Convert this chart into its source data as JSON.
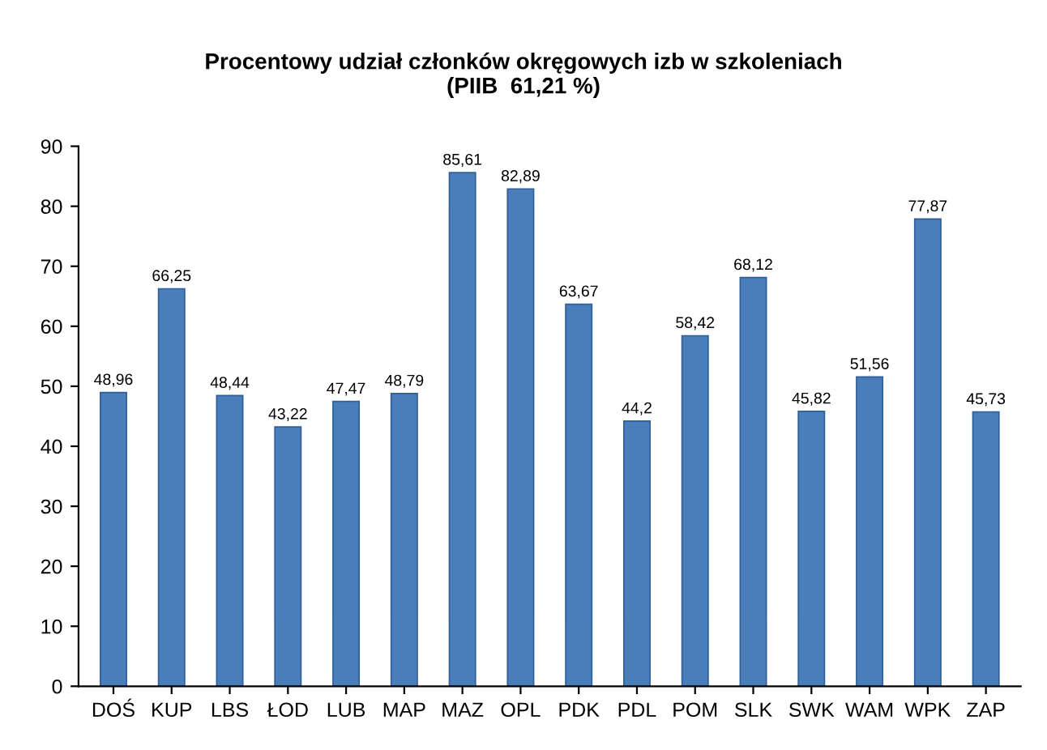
{
  "chart_data": {
    "type": "bar",
    "title": "Procentowy udział członków okręgowych izb w szkoleniach\n(PIIB  61,21 %)",
    "categories": [
      "DOŚ",
      "KUP",
      "LBS",
      "ŁOD",
      "LUB",
      "MAP",
      "MAZ",
      "OPL",
      "PDK",
      "PDL",
      "POM",
      "SLK",
      "SWK",
      "WAM",
      "WPK",
      "ZAP"
    ],
    "values": [
      48.96,
      66.25,
      48.44,
      43.22,
      47.47,
      48.79,
      85.61,
      82.89,
      63.67,
      44.2,
      58.42,
      68.12,
      45.82,
      51.56,
      77.87,
      45.73
    ],
    "value_labels": [
      "48,96",
      "66,25",
      "48,44",
      "43,22",
      "47,47",
      "48,79",
      "85,61",
      "82,89",
      "63,67",
      "44,2",
      "58,42",
      "68,12",
      "45,82",
      "51,56",
      "77,87",
      "45,73"
    ],
    "color": "#4a7ebb",
    "ylim": [
      0,
      90
    ],
    "yticks": [
      0,
      10,
      20,
      30,
      40,
      50,
      60,
      70,
      80,
      90
    ],
    "grid": false,
    "legend": false
  }
}
